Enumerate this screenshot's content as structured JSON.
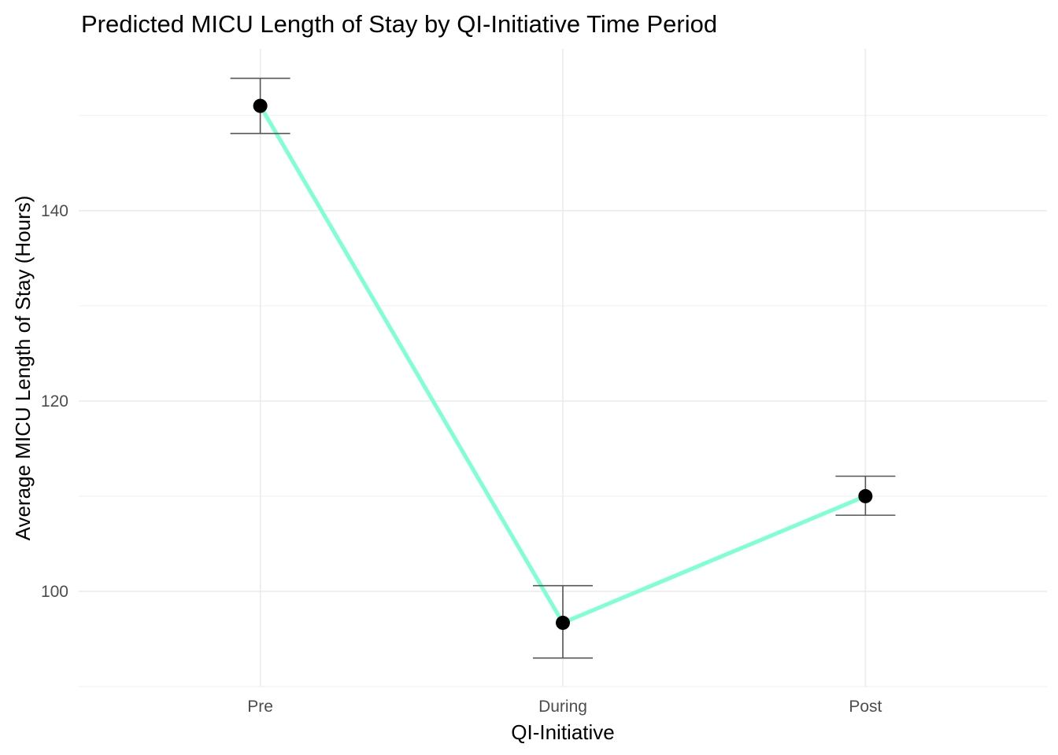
{
  "chart_data": {
    "type": "line",
    "title": "Predicted MICU Length of Stay by QI-Initiative Time Period",
    "xlabel": "QI-Initiative",
    "ylabel": "Average MICU Length of Stay (Hours)",
    "categories": [
      "Pre",
      "During",
      "Post"
    ],
    "series": [
      {
        "values": [
          151.0,
          96.7,
          110.0
        ],
        "lower": [
          148.1,
          93.0,
          108.0
        ],
        "upper": [
          153.9,
          100.6,
          112.1
        ]
      }
    ],
    "ylim": [
      90.0,
      157.0
    ],
    "yticks": [
      100,
      120,
      140
    ],
    "ytick_labels": [
      "100",
      "120",
      "140"
    ],
    "y_minor_ticks": [
      90,
      110,
      130,
      150
    ],
    "grid": true,
    "legend": "none",
    "colors": {
      "line": "#7fffd4",
      "point": "#000000",
      "errorbar": "#555555",
      "grid": "#ebebeb",
      "tick_text": "#4d4d4d",
      "background": "#ffffff"
    }
  }
}
